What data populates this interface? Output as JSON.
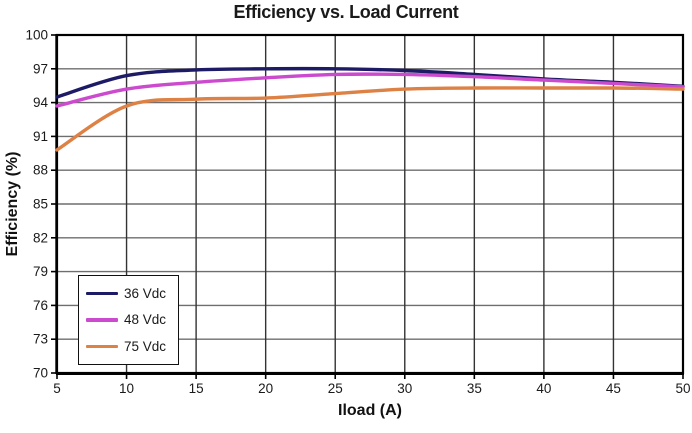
{
  "chart_data": {
    "type": "line",
    "title": "Efficiency vs. Load Current",
    "xlabel": "Iload (A)",
    "ylabel": "Efficiency (%)",
    "x": [
      5,
      10,
      15,
      20,
      25,
      30,
      35,
      40,
      45,
      50
    ],
    "xlim": [
      5,
      50
    ],
    "ylim": [
      70,
      100
    ],
    "x_ticks": [
      5,
      10,
      15,
      20,
      25,
      30,
      35,
      40,
      45,
      50
    ],
    "y_ticks": [
      70,
      73,
      76,
      79,
      82,
      85,
      88,
      91,
      94,
      97,
      100
    ],
    "grid": true,
    "legend_position": "lower-left",
    "series": [
      {
        "name": "36 Vdc",
        "color": "#1e1b66",
        "values": [
          94.5,
          96.4,
          96.9,
          97.0,
          97.0,
          96.85,
          96.5,
          96.1,
          95.8,
          95.45
        ]
      },
      {
        "name": "48 Vdc",
        "color": "#cb4ace",
        "values": [
          93.7,
          95.2,
          95.8,
          96.2,
          96.5,
          96.5,
          96.3,
          96.0,
          95.7,
          95.4
        ]
      },
      {
        "name": "75 Vdc",
        "color": "#dd8145",
        "values": [
          89.8,
          93.7,
          94.3,
          94.4,
          94.8,
          95.2,
          95.3,
          95.3,
          95.3,
          95.2
        ]
      }
    ],
    "colors": {
      "grid_horizontal": "#6e6e6e",
      "grid_vertical": "#333333",
      "border": "#000000",
      "text": "#1a1a1a"
    }
  }
}
